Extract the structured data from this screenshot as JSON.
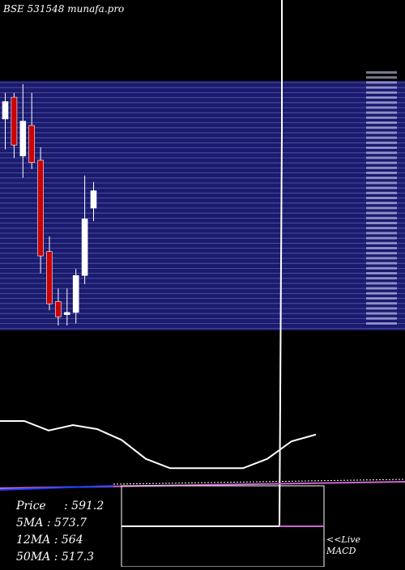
{
  "header": {
    "title": "BSE 531548 munafa.pro"
  },
  "stats": [
    {
      "label": "Price",
      "sep": ":",
      "value": "591.2"
    },
    {
      "label": "5MA",
      "sep": ":",
      "value": "573.7"
    },
    {
      "label": "12MA",
      "sep": ":",
      "value": "564"
    },
    {
      "label": "50MA",
      "sep": ":",
      "value": "517.3"
    }
  ],
  "macd_label": {
    "line1": "<<Live",
    "line2": "MACD"
  },
  "chart_data": [
    {
      "type": "candlestick",
      "title": "BSE 531548 munafa.pro",
      "background_band_color": "#1a1a6e",
      "up_color": "#ffffff",
      "down_color": "#cc0000",
      "candles": [
        {
          "open": 574,
          "close": 582,
          "high": 586,
          "low": 560,
          "dir": "up"
        },
        {
          "open": 584,
          "close": 562,
          "high": 586,
          "low": 556,
          "dir": "down"
        },
        {
          "open": 573,
          "close": 557,
          "high": 590,
          "low": 547,
          "dir": "up"
        },
        {
          "open": 571,
          "close": 554,
          "high": 586,
          "low": 551,
          "dir": "down"
        },
        {
          "open": 555,
          "close": 511,
          "high": 561,
          "low": 503,
          "dir": "down"
        },
        {
          "open": 513,
          "close": 489,
          "high": 520,
          "low": 486,
          "dir": "down"
        },
        {
          "open": 490,
          "close": 483,
          "high": 496,
          "low": 479,
          "dir": "down"
        },
        {
          "open": 484,
          "close": 485,
          "high": 496,
          "low": 479,
          "dir": "up"
        },
        {
          "open": 485,
          "close": 502,
          "high": 505,
          "low": 480,
          "dir": "up"
        },
        {
          "open": 502,
          "close": 528,
          "high": 548,
          "low": 498,
          "dir": "up"
        },
        {
          "open": 533,
          "close": 541,
          "high": 545,
          "low": 527,
          "dir": "up"
        }
      ],
      "price_range": [
        479,
        590
      ]
    },
    {
      "type": "line",
      "panel": "indicator",
      "series": [
        {
          "values": [
            48,
            48,
            41,
            45,
            42,
            34,
            20,
            13,
            13,
            13,
            13,
            20,
            33,
            38
          ],
          "color": "#ffffff"
        }
      ],
      "ylim": [
        0,
        60
      ]
    },
    {
      "type": "line",
      "panel": "macd",
      "series": [
        {
          "color": "#ffffff"
        },
        {
          "color": "#cc66cc"
        }
      ]
    }
  ]
}
